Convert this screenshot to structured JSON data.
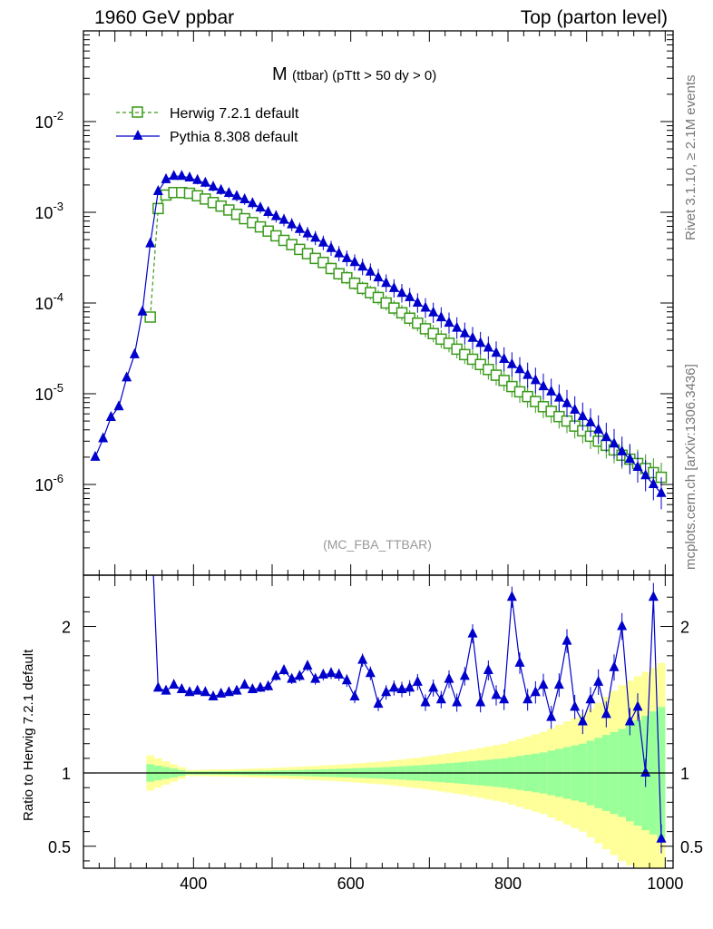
{
  "header": {
    "left": "1960 GeV ppbar",
    "right": "Top (parton level)"
  },
  "side_labels": {
    "rivet": "Rivet 3.1.10, ≥ 2.1M events",
    "mcplots": "mcplots.cern.ch [arXiv:1306.3436]"
  },
  "chart_data": [
    {
      "type": "line",
      "title_main": "M",
      "title_sub": "(ttbar) (pTtt > 50 dy > 0)",
      "watermark": "(MC_FBA_TTBAR)",
      "xlim": [
        260,
        1010
      ],
      "ylim": [
        1e-07,
        0.1
      ],
      "yscale": "log",
      "y_tick_labels": [
        "10^-6",
        "10^-5",
        "10^-4",
        "10^-3",
        "10^-2"
      ],
      "legend_position": "top-left",
      "series": [
        {
          "name": "Herwig 7.2.1 default",
          "color": "#3a9a1a",
          "marker": "open-square",
          "linestyle": "dashed",
          "x": [
            345,
            355,
            365,
            375,
            385,
            395,
            405,
            415,
            425,
            435,
            445,
            455,
            465,
            475,
            485,
            495,
            505,
            515,
            525,
            535,
            545,
            555,
            565,
            575,
            585,
            595,
            605,
            615,
            625,
            635,
            645,
            655,
            665,
            675,
            685,
            695,
            705,
            715,
            725,
            735,
            745,
            755,
            765,
            775,
            785,
            795,
            805,
            815,
            825,
            835,
            845,
            855,
            865,
            875,
            885,
            895,
            905,
            915,
            925,
            935,
            945,
            955,
            965,
            975,
            985,
            995
          ],
          "y": [
            7e-05,
            0.0011,
            0.00155,
            0.00165,
            0.00165,
            0.00162,
            0.00152,
            0.0014,
            0.00128,
            0.00117,
            0.00106,
            0.00095,
            0.00085,
            0.00077,
            0.00069,
            0.00062,
            0.00055,
            0.00049,
            0.00044,
            0.00039,
            0.00035,
            0.00031,
            0.00028,
            0.00024,
            0.00021,
            0.00019,
            0.000165,
            0.000145,
            0.00013,
            0.000115,
            0.0001,
            8.8e-05,
            7.8e-05,
            6.8e-05,
            6e-05,
            5.2e-05,
            4.6e-05,
            4e-05,
            3.6e-05,
            3.1e-05,
            2.7e-05,
            2.4e-05,
            2.1e-05,
            1.85e-05,
            1.6e-05,
            1.4e-05,
            1.2e-05,
            1.05e-05,
            9.3e-06,
            8.2e-06,
            7.2e-06,
            6.4e-06,
            5.6e-06,
            5e-06,
            4.4e-06,
            3.9e-06,
            3.4e-06,
            3e-06,
            2.7e-06,
            2.4e-06,
            2.1e-06,
            1.9e-06,
            1.7e-06,
            1.5e-06,
            1.35e-06,
            1.2e-06
          ]
        },
        {
          "name": "Pythia 8.308 default",
          "color": "#0000cc",
          "marker": "filled-triangle",
          "linestyle": "solid",
          "x": [
            275,
            285,
            295,
            305,
            315,
            325,
            335,
            345,
            355,
            365,
            375,
            385,
            395,
            405,
            415,
            425,
            435,
            445,
            455,
            465,
            475,
            485,
            495,
            505,
            515,
            525,
            535,
            545,
            555,
            565,
            575,
            585,
            595,
            605,
            615,
            625,
            635,
            645,
            655,
            665,
            675,
            685,
            695,
            705,
            715,
            725,
            735,
            745,
            755,
            765,
            775,
            785,
            795,
            805,
            815,
            825,
            835,
            845,
            855,
            865,
            875,
            885,
            895,
            905,
            915,
            925,
            935,
            945,
            955,
            965,
            975,
            985,
            995
          ],
          "y": [
            2e-06,
            3.2e-06,
            5.5e-06,
            7.2e-06,
            1.5e-05,
            2.7e-05,
            8e-05,
            0.00045,
            0.0017,
            0.0023,
            0.0025,
            0.0025,
            0.0024,
            0.00225,
            0.0021,
            0.0019,
            0.00175,
            0.00162,
            0.0015,
            0.00138,
            0.00125,
            0.00112,
            0.001,
            0.0009,
            0.00082,
            0.00073,
            0.00065,
            0.00058,
            0.00052,
            0.00046,
            0.0004,
            0.00035,
            0.00031,
            0.00028,
            0.00025,
            0.00022,
            0.00019,
            0.000165,
            0.000145,
            0.000128,
            0.000115,
            0.0001,
            8.8e-05,
            7.8e-05,
            6.9e-05,
            6e-05,
            5.3e-05,
            4.6e-05,
            4.1e-05,
            3.6e-05,
            3.2e-05,
            2.8e-05,
            2.4e-05,
            2.1e-05,
            1.85e-05,
            1.6e-05,
            1.4e-05,
            1.2e-05,
            1.05e-05,
            9e-06,
            7.8e-06,
            6.6e-06,
            5.6e-06,
            4.8e-06,
            4e-06,
            3.3e-06,
            2.8e-06,
            2.3e-06,
            1.9e-06,
            1.55e-06,
            1.25e-06,
            1e-06,
            8e-07
          ]
        }
      ]
    },
    {
      "type": "line",
      "ylabel": "Ratio to Herwig 7.2.1 default",
      "xlim": [
        260,
        1010
      ],
      "ylim": [
        0.35,
        2.35
      ],
      "x_tick_labels": [
        "400",
        "600",
        "800",
        "1000"
      ],
      "y_tick_labels": [
        "0.5",
        "1",
        "2"
      ],
      "series": [
        {
          "name": "Pythia 8.308 default",
          "color": "#0000cc",
          "x": [
            355,
            365,
            375,
            385,
            395,
            405,
            415,
            425,
            435,
            445,
            455,
            465,
            475,
            485,
            495,
            505,
            515,
            525,
            535,
            545,
            555,
            565,
            575,
            585,
            595,
            605,
            615,
            625,
            635,
            645,
            655,
            665,
            675,
            685,
            695,
            705,
            715,
            725,
            735,
            745,
            755,
            765,
            775,
            785,
            795,
            805,
            815,
            825,
            835,
            845,
            855,
            865,
            875,
            885,
            895,
            905,
            915,
            925,
            935,
            945,
            955,
            965,
            975,
            985,
            995
          ],
          "y": [
            1.58,
            1.56,
            1.6,
            1.57,
            1.55,
            1.56,
            1.55,
            1.52,
            1.54,
            1.55,
            1.56,
            1.6,
            1.57,
            1.58,
            1.59,
            1.66,
            1.7,
            1.64,
            1.66,
            1.73,
            1.64,
            1.67,
            1.68,
            1.67,
            1.63,
            1.52,
            1.77,
            1.68,
            1.47,
            1.55,
            1.58,
            1.57,
            1.58,
            1.62,
            1.48,
            1.58,
            1.5,
            1.64,
            1.48,
            1.66,
            1.95,
            1.48,
            1.7,
            1.53,
            1.5,
            2.2,
            1.75,
            1.5,
            1.55,
            1.6,
            1.38,
            1.6,
            1.9,
            1.45,
            1.35,
            1.5,
            1.62,
            1.4,
            1.72,
            2.0,
            1.35,
            1.45,
            1.0,
            2.2,
            0.55
          ]
        },
        {
          "name": "Herwig 7.2.1 default (stat. uncertainty bands)",
          "x": [
            345,
            395,
            445,
            495,
            545,
            595,
            645,
            695,
            745,
            795,
            845,
            895,
            945,
            995
          ],
          "band_green": [
            0.06,
            0.01,
            0.012,
            0.016,
            0.022,
            0.03,
            0.04,
            0.055,
            0.075,
            0.1,
            0.14,
            0.2,
            0.3,
            0.45
          ],
          "band_yellow": [
            0.12,
            0.02,
            0.025,
            0.033,
            0.045,
            0.06,
            0.08,
            0.11,
            0.15,
            0.2,
            0.28,
            0.4,
            0.6,
            0.75
          ]
        }
      ]
    }
  ]
}
